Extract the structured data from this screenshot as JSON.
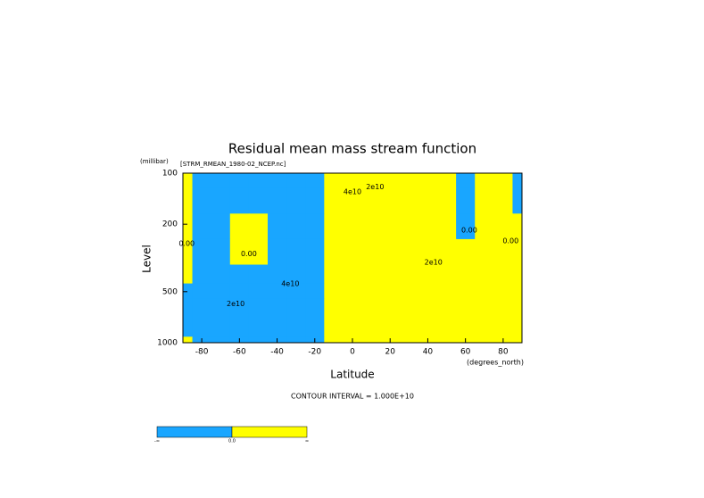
{
  "chart_data": {
    "type": "contour",
    "title": "Residual mean mass stream function",
    "subtitle": "[STRM_RMEAN_1980-02_NCEP.nc]",
    "y_units": "(millibar)",
    "ylabel": "Level",
    "xlabel": "Latitude",
    "x_units": "(degrees_north)",
    "note": "CONTOUR INTERVAL = 1.000E+10",
    "xlim": [
      -90,
      90
    ],
    "xticks": [
      -80,
      -60,
      -40,
      -20,
      0,
      20,
      40,
      60,
      80
    ],
    "ylim": [
      100,
      1000
    ],
    "yticks": [
      100,
      200,
      500,
      1000
    ],
    "ylog": true,
    "yinvert": true,
    "negative_color": "#19a6ff",
    "positive_color": "#ffff00",
    "x": [
      -90,
      -80,
      -70,
      -60,
      -50,
      -40,
      -30,
      -20,
      -10,
      0,
      10,
      20,
      30,
      40,
      50,
      60,
      70,
      80,
      90
    ],
    "y": [
      100,
      150,
      200,
      300,
      400,
      500,
      600,
      700,
      850,
      1000
    ],
    "z": [
      [
        0.2,
        -0.3,
        -0.5,
        -0.6,
        -0.6,
        -0.8,
        -1,
        -1.2,
        1,
        2,
        2,
        1,
        0.5,
        0.8,
        0.8,
        -0.2,
        0.3,
        0.2,
        -0.1
      ],
      [
        0.3,
        -0.5,
        -0.8,
        -0.6,
        -0.8,
        -1.2,
        -1.5,
        -2,
        4,
        8,
        6,
        2,
        1,
        1,
        1,
        -0.3,
        0.3,
        0.2,
        -0.1
      ],
      [
        0.3,
        -0.6,
        -1,
        0.3,
        0.2,
        -1.5,
        -2,
        -3,
        6,
        12,
        10,
        3,
        2,
        2,
        1.5,
        -0.2,
        0.5,
        0.3,
        0.1
      ],
      [
        0.2,
        -0.8,
        -1.2,
        0.2,
        0.1,
        -1.5,
        -2.5,
        -4,
        8,
        14,
        12,
        4,
        3,
        3,
        2,
        0.5,
        0.6,
        0.4,
        0.2
      ],
      [
        0.1,
        -1,
        -1.5,
        -0.5,
        -1,
        -2,
        -3,
        -4,
        8,
        14,
        12,
        5,
        4,
        5,
        3,
        1,
        0.8,
        0.5,
        0.2
      ],
      [
        -0.1,
        -1.5,
        -2,
        -2,
        -2,
        -2.5,
        -3,
        -4,
        6,
        12,
        10,
        4,
        6,
        8,
        5,
        2,
        1,
        0.5,
        0.2
      ],
      [
        -0.3,
        -2,
        -2.5,
        -2.5,
        -2.5,
        -3,
        -3.5,
        -4,
        4,
        10,
        8,
        3,
        7,
        9,
        6,
        2,
        1,
        0.5,
        0.2
      ],
      [
        -0.5,
        -2,
        -3,
        -3,
        -3,
        -3.5,
        -4,
        -4,
        3,
        8,
        6,
        2,
        8,
        10,
        6,
        2,
        1,
        0.5,
        0.2
      ],
      [
        -0.3,
        -1.5,
        -2,
        -2.5,
        -3,
        -3,
        -3,
        -3,
        2,
        5,
        4,
        1,
        6,
        8,
        4,
        1,
        0.5,
        0.3,
        0.1
      ],
      [
        0,
        -0.5,
        -1,
        -1,
        -1,
        -1,
        -1,
        -1,
        0.5,
        1,
        1,
        0.5,
        1,
        1,
        0.5,
        0.2,
        0.1,
        0.1,
        0
      ]
    ],
    "annotations": [
      {
        "text": "2e10",
        "lat": -62,
        "level": 590
      },
      {
        "text": "4e10",
        "lat": -33,
        "level": 450
      },
      {
        "text": "0.00",
        "lat": -88,
        "level": 260
      },
      {
        "text": "0.00",
        "lat": -55,
        "level": 300
      },
      {
        "text": "2e10",
        "lat": 12,
        "level": 121
      },
      {
        "text": "4e10",
        "lat": 0,
        "level": 129
      },
      {
        "text": "2e10",
        "lat": 43,
        "level": 336
      },
      {
        "text": "0.00",
        "lat": 62,
        "level": 217
      },
      {
        "text": "0.00",
        "lat": 84,
        "level": 251
      }
    ],
    "colorbar_labels": [
      "-∞",
      "0.0",
      "∞"
    ]
  }
}
